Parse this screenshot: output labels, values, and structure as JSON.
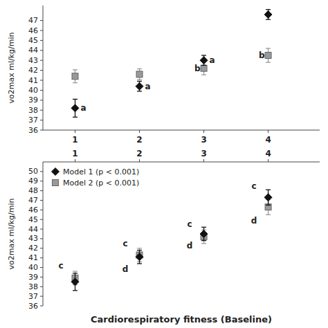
{
  "chart_data": [
    {
      "type": "scatter",
      "y_label": "vo2max ml/kg/min",
      "x": [
        1,
        2,
        3,
        4
      ],
      "xlim": [
        0.5,
        4.8
      ],
      "xticks": [
        1,
        2,
        3,
        4
      ],
      "ylim": [
        36,
        48.5
      ],
      "yticks": [
        36,
        37,
        38,
        39,
        40,
        41,
        42,
        43,
        44,
        45,
        46,
        47
      ],
      "series": [
        {
          "color": "#111111",
          "marker": "diamond",
          "values": [
            38.2,
            40.4,
            43.0,
            47.6
          ],
          "yerr": [
            0.9,
            0.5,
            0.5,
            0.5
          ]
        },
        {
          "color": "#999999",
          "marker": "square",
          "values": [
            41.4,
            41.6,
            42.2,
            43.5
          ],
          "yerr": [
            0.65,
            0.55,
            0.65,
            0.7
          ]
        }
      ],
      "annotations": [
        {
          "x": 1.13,
          "y": 38.2,
          "label": "a"
        },
        {
          "x": 2.13,
          "y": 40.4,
          "label": "a"
        },
        {
          "x": 3.13,
          "y": 43.0,
          "label": "a"
        },
        {
          "x": 2.9,
          "y": 42.2,
          "label": "b"
        },
        {
          "x": 3.9,
          "y": 43.5,
          "label": "b"
        }
      ]
    },
    {
      "type": "scatter",
      "title": "Cardiorespiratory fitness (Baseline)",
      "y_label": "vo2max ml/kg/min",
      "x": [
        1,
        2,
        3,
        4
      ],
      "xlim": [
        0.5,
        4.8
      ],
      "xticks": [
        1,
        2,
        3,
        4
      ],
      "ylim": [
        36,
        51
      ],
      "yticks": [
        36,
        37,
        38,
        39,
        40,
        41,
        42,
        43,
        44,
        45,
        46,
        47,
        48,
        49,
        50
      ],
      "legend": "upper left",
      "series": [
        {
          "name": "Model 1 (p < 0.001)",
          "color": "#111111",
          "marker": "diamond",
          "values": [
            38.5,
            41.1,
            43.5,
            47.3
          ],
          "yerr": [
            0.9,
            0.7,
            0.7,
            0.8
          ]
        },
        {
          "name": "Model 2 (p < 0.001)",
          "color": "#999999",
          "marker": "square",
          "values": [
            38.9,
            41.3,
            43.2,
            46.3
          ],
          "yerr": [
            0.7,
            0.7,
            0.7,
            0.8
          ]
        }
      ],
      "annotations": [
        {
          "x": 0.78,
          "y": 40.2,
          "label": "c"
        },
        {
          "x": 1.78,
          "y": 42.5,
          "label": "c"
        },
        {
          "x": 2.78,
          "y": 44.5,
          "label": "c"
        },
        {
          "x": 3.78,
          "y": 48.5,
          "label": "c"
        },
        {
          "x": 3.78,
          "y": 44.9,
          "label": "d"
        },
        {
          "x": 1.78,
          "y": 39.8,
          "label": "d"
        },
        {
          "x": 2.78,
          "y": 42.3,
          "label": "d"
        }
      ]
    }
  ]
}
